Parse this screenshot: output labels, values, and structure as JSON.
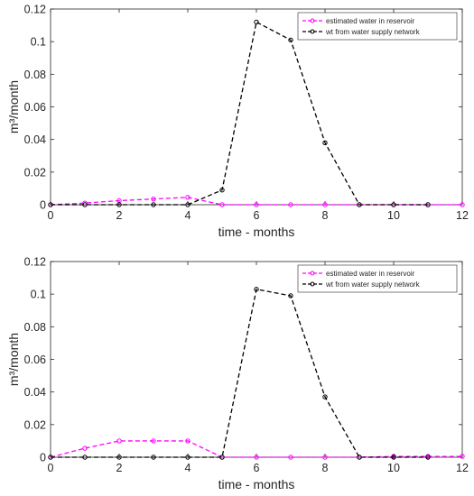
{
  "chart_data": [
    {
      "type": "line",
      "xlabel": "time - months",
      "ylabel": "m³/month",
      "xlim": [
        0,
        12
      ],
      "ylim": [
        0,
        0.12
      ],
      "xticks": [
        "0",
        "2",
        "4",
        "6",
        "8",
        "10",
        "12"
      ],
      "yticks": [
        "0",
        "0.02",
        "0.04",
        "0.06",
        "0.08",
        "0.1",
        "0.12"
      ],
      "legend_position": "top-right",
      "grid": false,
      "series": [
        {
          "name": "estimated water in reservoir",
          "color": "#ff00ff",
          "x": [
            0,
            1,
            2,
            3,
            4,
            5,
            6,
            7,
            8,
            9,
            10,
            11,
            12
          ],
          "y": [
            0,
            0.001,
            0.0025,
            0.0035,
            0.0045,
            0,
            0,
            0,
            0,
            0,
            0,
            0,
            0
          ]
        },
        {
          "name": "wt from water supply network",
          "color": "#000000",
          "x": [
            0,
            1,
            2,
            3,
            4,
            5,
            6,
            7,
            8,
            9,
            10,
            11
          ],
          "y": [
            0,
            0,
            0,
            0,
            0,
            0.009,
            0.112,
            0.101,
            0.038,
            0,
            0,
            0
          ]
        }
      ]
    },
    {
      "type": "line",
      "xlabel": "time - months",
      "ylabel": "m³/month",
      "xlim": [
        0,
        12
      ],
      "ylim": [
        0,
        0.12
      ],
      "xticks": [
        "0",
        "2",
        "4",
        "6",
        "8",
        "10",
        "12"
      ],
      "yticks": [
        "0",
        "0.02",
        "0.04",
        "0.06",
        "0.08",
        "0.1",
        "0.12"
      ],
      "legend_position": "top-right",
      "grid": false,
      "series": [
        {
          "name": "estimated water in reservoir",
          "color": "#ff00ff",
          "x": [
            0,
            1,
            2,
            3,
            4,
            5,
            6,
            7,
            8,
            9,
            10,
            11,
            12
          ],
          "y": [
            0,
            0.0055,
            0.01,
            0.01,
            0.01,
            0,
            0,
            0,
            0,
            0,
            0.0005,
            0.0005,
            0.0005
          ]
        },
        {
          "name": "wt from water supply network",
          "color": "#000000",
          "x": [
            0,
            1,
            2,
            3,
            4,
            5,
            6,
            7,
            8,
            9,
            10,
            11
          ],
          "y": [
            0,
            0,
            0,
            0,
            0,
            0,
            0.103,
            0.099,
            0.037,
            0,
            0,
            0
          ]
        }
      ]
    }
  ]
}
